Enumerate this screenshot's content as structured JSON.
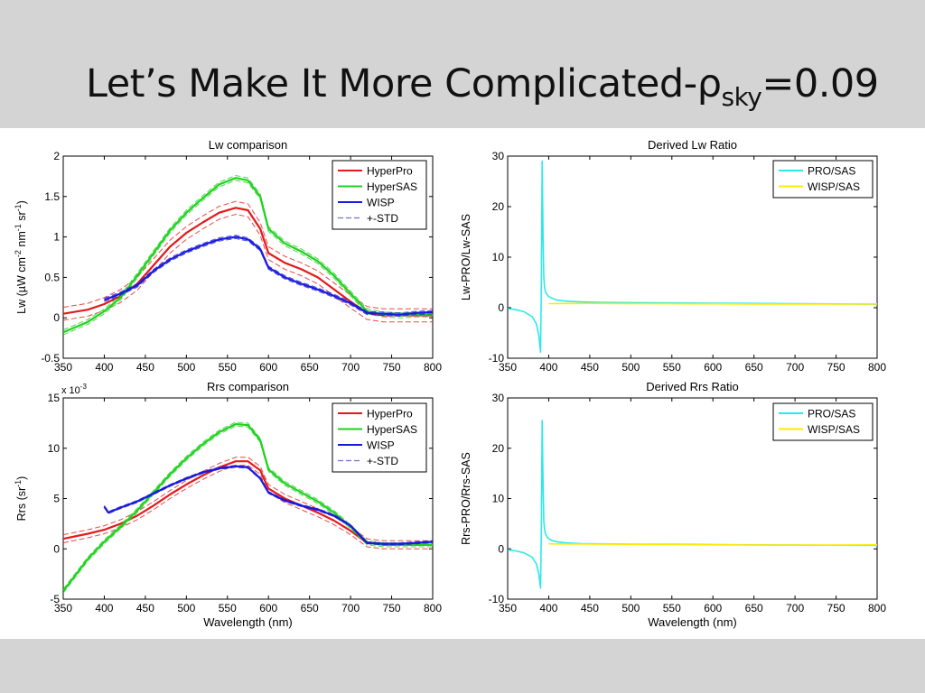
{
  "slide": {
    "title_main": "Let’s Make It More Complicated-",
    "title_rho": "ρ",
    "title_sub": "sky",
    "title_tail": "=0.09"
  },
  "chart_data": [
    {
      "id": "lw",
      "type": "line",
      "title": "Lw comparison",
      "xlabel": "",
      "ylabel_parts": [
        "Lw (",
        "µ",
        "W cm",
        "-2",
        " nm",
        "-1",
        " sr",
        "-1",
        ")"
      ],
      "xlim": [
        350,
        800
      ],
      "ylim": [
        -0.5,
        2
      ],
      "xticks": [
        350,
        400,
        450,
        500,
        550,
        600,
        650,
        700,
        750,
        800
      ],
      "yticks": [
        -0.5,
        0,
        0.5,
        1,
        1.5,
        2
      ],
      "ytick_labels": [
        "-0.5",
        "0",
        "0.5",
        "1",
        "1.5",
        "2"
      ],
      "legend_position": "top-right",
      "legend": [
        "HyperPro",
        "HyperSAS",
        "WISP",
        "+-STD"
      ],
      "series": [
        {
          "name": "HyperPro",
          "color": "#e31a1c",
          "std": 0.08,
          "x": [
            350,
            380,
            400,
            420,
            440,
            460,
            480,
            500,
            520,
            540,
            560,
            575,
            590,
            600,
            620,
            640,
            660,
            680,
            700,
            720,
            740,
            760,
            780,
            800
          ],
          "y": [
            0.05,
            0.1,
            0.17,
            0.27,
            0.42,
            0.65,
            0.88,
            1.05,
            1.18,
            1.3,
            1.36,
            1.33,
            1.1,
            0.8,
            0.68,
            0.6,
            0.5,
            0.35,
            0.2,
            0.06,
            0.03,
            0.03,
            0.03,
            0.03
          ]
        },
        {
          "name": "HyperSAS",
          "color": "#1ed21e",
          "std": 0.03,
          "x": [
            350,
            380,
            400,
            420,
            440,
            460,
            480,
            500,
            520,
            540,
            560,
            575,
            590,
            600,
            620,
            640,
            660,
            680,
            700,
            720,
            740,
            760,
            780,
            800
          ],
          "y": [
            -0.18,
            -0.05,
            0.08,
            0.25,
            0.52,
            0.8,
            1.08,
            1.3,
            1.48,
            1.65,
            1.73,
            1.7,
            1.5,
            1.1,
            0.92,
            0.82,
            0.7,
            0.52,
            0.3,
            0.08,
            0.04,
            0.03,
            0.04,
            0.04
          ]
        },
        {
          "name": "WISP",
          "color": "#1a1adc",
          "std": 0.02,
          "x": [
            400,
            420,
            440,
            460,
            480,
            500,
            520,
            540,
            560,
            575,
            590,
            600,
            620,
            640,
            660,
            680,
            700,
            720,
            740,
            760,
            780,
            800
          ],
          "y": [
            0.22,
            0.3,
            0.4,
            0.58,
            0.72,
            0.82,
            0.9,
            0.97,
            1.0,
            0.97,
            0.85,
            0.62,
            0.5,
            0.42,
            0.35,
            0.27,
            0.18,
            0.06,
            0.05,
            0.04,
            0.06,
            0.07
          ]
        }
      ]
    },
    {
      "id": "lwratio",
      "type": "line",
      "title": "Derived Lw Ratio",
      "xlabel": "",
      "ylabel": "Lw-PRO/Lw-SAS",
      "xlim": [
        350,
        800
      ],
      "ylim": [
        -10,
        30
      ],
      "xticks": [
        350,
        400,
        450,
        500,
        550,
        600,
        650,
        700,
        750,
        800
      ],
      "yticks": [
        -10,
        0,
        10,
        20,
        30
      ],
      "ytick_labels": [
        "-10",
        "0",
        "10",
        "20",
        "30"
      ],
      "legend_position": "top-right",
      "legend": [
        "PRO/SAS",
        "WISP/SAS"
      ],
      "series": [
        {
          "name": "PRO/SAS",
          "color": "#2ee8e8",
          "x": [
            350,
            360,
            370,
            380,
            385,
            388,
            390,
            391,
            392,
            393,
            394,
            395,
            396,
            398,
            400,
            405,
            410,
            420,
            440,
            460,
            500,
            550,
            600,
            650,
            700,
            750,
            800
          ],
          "y": [
            -0.2,
            -0.4,
            -0.8,
            -1.8,
            -3.2,
            -5.5,
            -8.8,
            5,
            29,
            15,
            6,
            4,
            3.2,
            2.6,
            2.2,
            1.8,
            1.5,
            1.3,
            1.15,
            1.05,
            1.0,
            0.95,
            0.9,
            0.85,
            0.8,
            0.75,
            0.7
          ]
        },
        {
          "name": "WISP/SAS",
          "color": "#ffea00",
          "x": [
            400,
            450,
            500,
            550,
            600,
            650,
            700,
            750,
            800
          ],
          "y": [
            0.8,
            0.85,
            0.8,
            0.78,
            0.76,
            0.74,
            0.72,
            0.72,
            0.75
          ]
        }
      ]
    },
    {
      "id": "rrs",
      "type": "line",
      "title": "Rrs comparison",
      "xlabel": "Wavelength (nm)",
      "ylabel": "Rrs (sr",
      "ylabel_sup": "-1",
      "ylabel_end": ")",
      "scale_note": "x 10",
      "scale_note_exp": "-3",
      "xlim": [
        350,
        800
      ],
      "ylim": [
        -5,
        15
      ],
      "xticks": [
        350,
        400,
        450,
        500,
        550,
        600,
        650,
        700,
        750,
        800
      ],
      "yticks": [
        -5,
        0,
        5,
        10,
        15
      ],
      "ytick_labels": [
        "-5",
        "0",
        "5",
        "10",
        "15"
      ],
      "legend_position": "top-right",
      "legend": [
        "HyperPro",
        "HyperSAS",
        "WISP",
        "+-STD"
      ],
      "series": [
        {
          "name": "HyperPro",
          "color": "#e31a1c",
          "std": 0.4,
          "x": [
            350,
            380,
            400,
            420,
            440,
            460,
            480,
            500,
            520,
            540,
            560,
            575,
            590,
            600,
            620,
            640,
            660,
            680,
            700,
            720,
            740,
            760,
            780,
            800
          ],
          "y": [
            1.0,
            1.5,
            1.9,
            2.5,
            3.3,
            4.3,
            5.4,
            6.4,
            7.3,
            8.1,
            8.7,
            8.7,
            7.8,
            6.0,
            5.0,
            4.3,
            3.6,
            2.8,
            1.8,
            0.6,
            0.4,
            0.4,
            0.4,
            0.4
          ]
        },
        {
          "name": "HyperSAS",
          "color": "#1ed21e",
          "std": 0.2,
          "x": [
            350,
            380,
            400,
            420,
            440,
            460,
            480,
            500,
            520,
            540,
            560,
            575,
            590,
            600,
            620,
            640,
            660,
            680,
            700,
            720,
            740,
            760,
            780,
            800
          ],
          "y": [
            -4.2,
            -1.0,
            0.7,
            2.2,
            3.8,
            5.6,
            7.4,
            9.0,
            10.4,
            11.6,
            12.4,
            12.3,
            10.8,
            7.9,
            6.5,
            5.6,
            4.7,
            3.6,
            2.2,
            0.6,
            0.4,
            0.4,
            0.4,
            0.4
          ]
        },
        {
          "name": "WISP",
          "color": "#1a1adc",
          "std": 0.1,
          "x": [
            400,
            405,
            420,
            440,
            460,
            480,
            500,
            520,
            540,
            560,
            575,
            590,
            600,
            620,
            640,
            660,
            680,
            700,
            720,
            740,
            760,
            780,
            800
          ],
          "y": [
            4.2,
            3.6,
            4.1,
            4.7,
            5.5,
            6.3,
            7.0,
            7.6,
            8.0,
            8.2,
            8.1,
            7.0,
            5.6,
            4.8,
            4.3,
            3.9,
            3.3,
            2.3,
            0.6,
            0.5,
            0.5,
            0.6,
            0.7
          ]
        }
      ]
    },
    {
      "id": "rrsratio",
      "type": "line",
      "title": "Derived Rrs Ratio",
      "xlabel": "Wavelength (nm)",
      "ylabel": "Rrs-PRO/Rrs-SAS",
      "xlim": [
        350,
        800
      ],
      "ylim": [
        -10,
        30
      ],
      "xticks": [
        350,
        400,
        450,
        500,
        550,
        600,
        650,
        700,
        750,
        800
      ],
      "yticks": [
        -10,
        0,
        10,
        20,
        30
      ],
      "ytick_labels": [
        "-10",
        "0",
        "10",
        "20",
        "30"
      ],
      "legend_position": "top-right",
      "legend": [
        "PRO/SAS",
        "WISP/SAS"
      ],
      "series": [
        {
          "name": "PRO/SAS",
          "color": "#2ee8e8",
          "x": [
            350,
            360,
            370,
            380,
            385,
            388,
            390,
            391,
            392,
            393,
            394,
            395,
            396,
            398,
            400,
            405,
            410,
            420,
            440,
            460,
            500,
            550,
            600,
            650,
            700,
            750,
            800
          ],
          "y": [
            -0.2,
            -0.4,
            -0.8,
            -1.7,
            -3.0,
            -5.0,
            -7.8,
            4,
            25.5,
            14,
            5.5,
            3.8,
            3.0,
            2.4,
            2.0,
            1.6,
            1.4,
            1.2,
            1.05,
            1.0,
            0.95,
            0.9,
            0.85,
            0.8,
            0.75,
            0.7,
            0.7
          ]
        },
        {
          "name": "WISP/SAS",
          "color": "#ffea00",
          "x": [
            400,
            450,
            500,
            550,
            600,
            650,
            700,
            750,
            800
          ],
          "y": [
            1.0,
            0.95,
            0.9,
            0.85,
            0.8,
            0.78,
            0.75,
            0.75,
            0.8
          ]
        }
      ]
    }
  ]
}
